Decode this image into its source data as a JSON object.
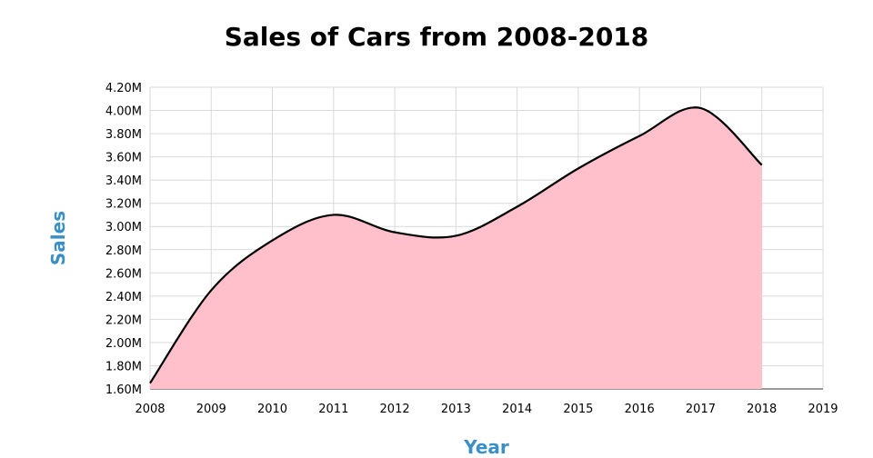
{
  "chart_data": {
    "type": "area",
    "title": "Sales of Cars from 2008-2018",
    "xlabel": "Year",
    "ylabel": "Sales",
    "x": [
      2008,
      2009,
      2010,
      2011,
      2012,
      2013,
      2014,
      2015,
      2016,
      2017,
      2018
    ],
    "series": [
      {
        "values": [
          1.65,
          2.45,
          2.88,
          3.1,
          2.95,
          2.92,
          3.17,
          3.5,
          3.78,
          4.02,
          3.53
        ]
      }
    ],
    "xlim": [
      2008,
      2019
    ],
    "ylim": [
      1.6,
      4.2
    ],
    "x_ticks": [
      "2008",
      "2009",
      "2010",
      "2011",
      "2012",
      "2013",
      "2014",
      "2015",
      "2016",
      "2017",
      "2018",
      "2019"
    ],
    "y_ticks": [
      "1.60M",
      "1.80M",
      "2.00M",
      "2.20M",
      "2.40M",
      "2.60M",
      "2.80M",
      "3.00M",
      "3.20M",
      "3.40M",
      "3.60M",
      "3.80M",
      "4.00M",
      "4.20M"
    ],
    "grid": true,
    "legend": "none",
    "fill_color": "#ffc0cb",
    "line_color": "#000000",
    "grid_color": "#d9d9d9",
    "label_color": "#3b8fc7"
  }
}
